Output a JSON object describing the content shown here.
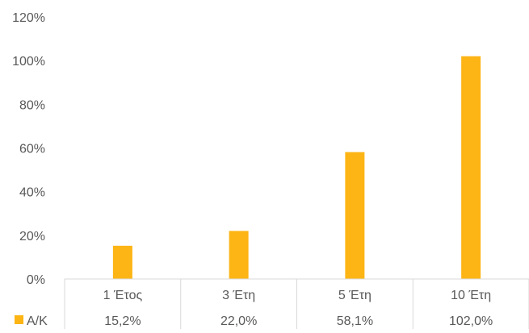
{
  "chart_data": {
    "type": "bar",
    "categories": [
      "1 Έτος",
      "3 Έτη",
      "5 Έτη",
      "10 Έτη"
    ],
    "series": [
      {
        "name": "Α/Κ",
        "values": [
          15.2,
          22.0,
          58.1,
          102.0
        ],
        "value_labels": [
          "15,2%",
          "22,0%",
          "58,1%",
          "102,0%"
        ],
        "color": "#FDB515"
      }
    ],
    "ylim": [
      0,
      120
    ],
    "y_ticks": [
      0,
      20,
      40,
      60,
      80,
      100,
      120
    ],
    "y_tick_labels": [
      "0%",
      "20%",
      "40%",
      "60%",
      "80%",
      "100%",
      "120%"
    ],
    "grid": false,
    "legend": "bottom-left, inside data table",
    "data_table": true,
    "axis_color": "#d9d9d9"
  }
}
